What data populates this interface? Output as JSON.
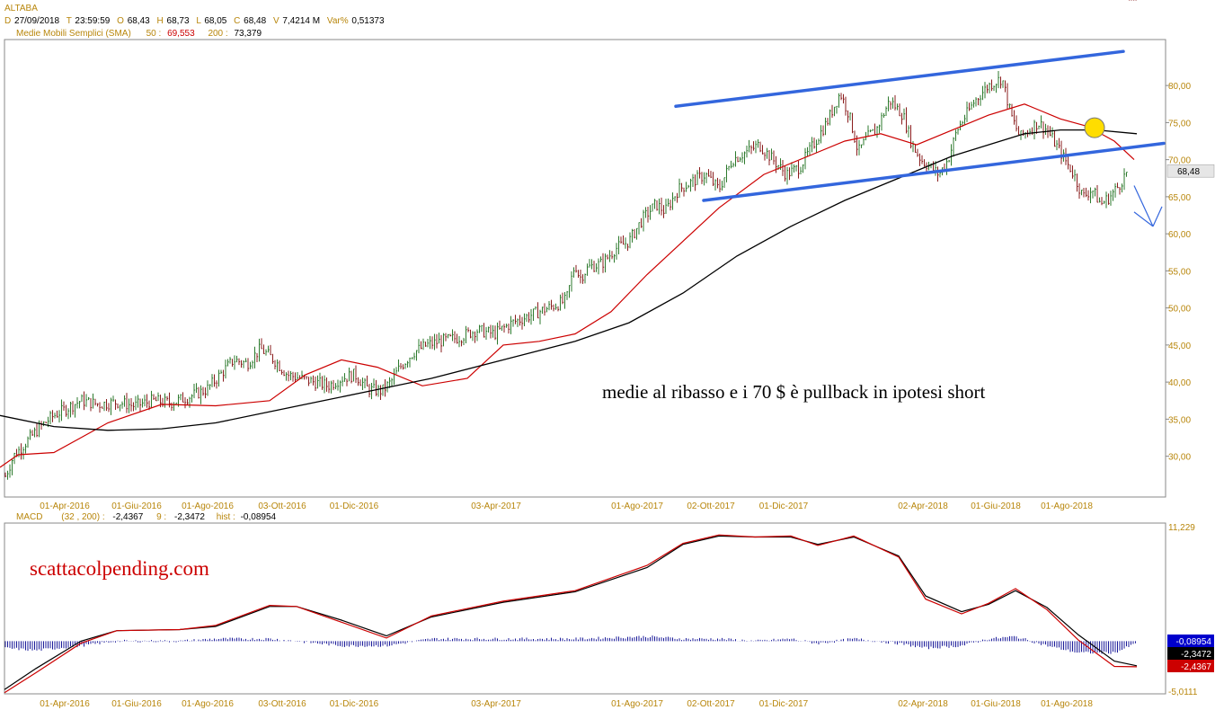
{
  "header": {
    "symbol": "ALTABA",
    "date_prefix": "D",
    "date": "27/09/2018",
    "time_prefix": "T",
    "time": "23:59:59",
    "open_prefix": "O",
    "open": "68,43",
    "high_prefix": "H",
    "high": "68,73",
    "low_prefix": "L",
    "low": "68,05",
    "close_prefix": "C",
    "close": "68,48",
    "volume_prefix": "V",
    "volume": "7,4214 M",
    "var_prefix": "Var%",
    "var": "0,51373",
    "sma_label": "Medie Mobili Semplici (SMA)",
    "sma_fast_param": "50 :",
    "sma_fast_value": "69,553",
    "sma_slow_param": "200 :",
    "sma_slow_value": "73,379"
  },
  "macd_header": {
    "label": "MACD",
    "params": "(32 , 200) :",
    "macd_value": "-2,4367",
    "signal_param": "9 :",
    "signal_value": "-2,3472",
    "hist_label": "hist :",
    "hist_value": "-0,08954"
  },
  "annotation": "medie al ribasso e i 70 $ è pullback in ipotesi short",
  "watermark": "scattacolpending.com",
  "colors": {
    "axis_label": "#b8860b",
    "sma50": "#cc0000",
    "sma200": "#000000",
    "trendline": "#3366dd",
    "histogram": "#1a1a99",
    "crossover_marker": "#ffdd00",
    "price_flag": "#e6e6e6",
    "macd_flag": "#cc0000",
    "signal_flag": "#000000",
    "hist_flag": "#0000cc"
  },
  "chart_data": [
    {
      "type": "candlestick",
      "title": "ALTABA",
      "x_dates": [
        "01-Apr-2016",
        "01-Giu-2016",
        "01-Ago-2016",
        "03-Ott-2016",
        "01-Dic-2016",
        "03-Apr-2017",
        "01-Ago-2017",
        "02-Ott-2017",
        "01-Dic-2017",
        "02-Apr-2018",
        "01-Giu-2018",
        "01-Ago-2018"
      ],
      "y_ticks": [
        "30,00",
        "35,00",
        "40,00",
        "45,00",
        "50,00",
        "55,00",
        "60,00",
        "65,00",
        "70,00",
        "75,00",
        "80,00"
      ],
      "ylim": [
        24.5,
        86.2
      ],
      "grid": false,
      "last_price": "68,48",
      "series": [
        {
          "name": "Medie Mobili Semplici (SMA) 50",
          "x": [
            0,
            20,
            60,
            120,
            180,
            240,
            300,
            340,
            380,
            420,
            470,
            520,
            560,
            600,
            640,
            680,
            720,
            760,
            800,
            850,
            900,
            940,
            980,
            1020,
            1060,
            1100,
            1140,
            1160,
            1180,
            1210,
            1240,
            1262
          ],
          "values": [
            28.5,
            30.2,
            30.5,
            34.5,
            37,
            36.8,
            37.5,
            41,
            43,
            42,
            39.5,
            40.5,
            45,
            45.5,
            46.5,
            49.5,
            54.5,
            59,
            63.5,
            68,
            70.5,
            72.5,
            73.5,
            72,
            74,
            76,
            77.5,
            76.5,
            75.5,
            74.5,
            72.5,
            70
          ]
        },
        {
          "name": "Medie Mobili Semplici (SMA) 200",
          "x": [
            0,
            60,
            120,
            180,
            240,
            300,
            360,
            420,
            480,
            560,
            640,
            700,
            760,
            820,
            880,
            940,
            980,
            1020,
            1060,
            1100,
            1140,
            1180,
            1220,
            1265
          ],
          "values": [
            35.5,
            34,
            33.5,
            33.7,
            34.5,
            36,
            37.5,
            39,
            40.5,
            43,
            45.5,
            48,
            52,
            57,
            61,
            64.5,
            66.5,
            68.5,
            70.5,
            72,
            73.5,
            74,
            74,
            73.5
          ]
        }
      ],
      "trendlines": [
        {
          "from": [
            752,
            77.2
          ],
          "to": [
            1250,
            84.6
          ]
        },
        {
          "from": [
            783,
            64.5
          ],
          "to": [
            1295,
            72.2
          ]
        }
      ],
      "arrow_down": {
        "from": [
          1262,
          66.5
        ],
        "to": [
          1283,
          61
        ]
      }
    },
    {
      "type": "line",
      "title": "MACD (32 , 200)",
      "x_dates": [
        "01-Apr-2016",
        "01-Giu-2016",
        "01-Ago-2016",
        "03-Ott-2016",
        "01-Dic-2016",
        "03-Apr-2017",
        "01-Ago-2017",
        "02-Ott-2017",
        "01-Dic-2017",
        "02-Apr-2018",
        "01-Giu-2018",
        "01-Ago-2018"
      ],
      "y_ticks": [
        "11,229",
        "-5,0111"
      ],
      "ylim": [
        -5.0111,
        11.229
      ],
      "series": [
        {
          "name": "MACD",
          "x": [
            5,
            40,
            90,
            130,
            200,
            240,
            300,
            330,
            380,
            430,
            480,
            560,
            640,
            720,
            760,
            800,
            840,
            880,
            910,
            950,
            1000,
            1030,
            1070,
            1100,
            1130,
            1165,
            1200,
            1240,
            1265
          ],
          "values": [
            -4.9,
            -3,
            -0.2,
            1,
            1.1,
            1.5,
            3.4,
            3.3,
            1.8,
            0.3,
            2.4,
            3.8,
            4.8,
            7.2,
            9.3,
            10.1,
            9.9,
            10,
            9.1,
            10,
            8,
            4,
            2.6,
            3.6,
            5,
            3,
            0.1,
            -2.4,
            -2.4367
          ]
        },
        {
          "name": "signal",
          "x": [
            5,
            40,
            90,
            130,
            200,
            240,
            300,
            330,
            380,
            430,
            480,
            560,
            640,
            720,
            760,
            800,
            840,
            880,
            910,
            950,
            1000,
            1030,
            1070,
            1100,
            1130,
            1165,
            1200,
            1240,
            1265
          ],
          "values": [
            -4.6,
            -2.6,
            0,
            1,
            1.1,
            1.4,
            3.3,
            3.3,
            2,
            0.5,
            2.3,
            3.7,
            4.7,
            7,
            9.2,
            10,
            9.9,
            9.9,
            9.2,
            9.9,
            8.1,
            4.3,
            2.8,
            3.5,
            4.8,
            3.2,
            0.6,
            -1.9,
            -2.3472
          ]
        }
      ]
    }
  ]
}
